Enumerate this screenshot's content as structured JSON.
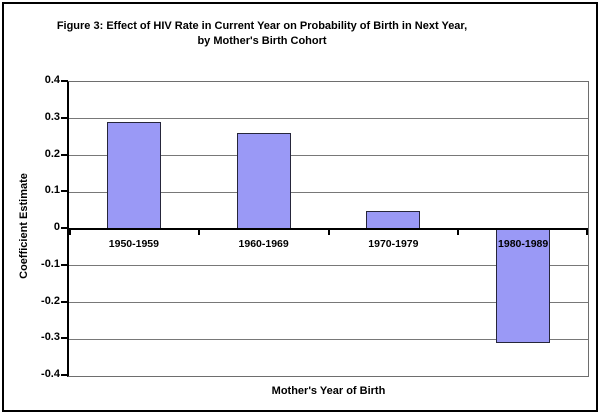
{
  "chart": {
    "title_line1": "Figure 3:  Effect of HIV Rate in Current Year on Probability of Birth in Next Year,",
    "title_line2": "by Mother's Birth Cohort",
    "xlabel": "Mother's Year of Birth",
    "ylabel": "Coefficient Estimate"
  },
  "chart_data": {
    "type": "bar",
    "title": "Figure 3: Effect of HIV Rate in Current Year on Probability of Birth in Next Year, by Mother's Birth Cohort",
    "categories": [
      "1950-1959",
      "1960-1969",
      "1970-1979",
      "1980-1989"
    ],
    "values": [
      0.29,
      0.26,
      0.05,
      -0.31
    ],
    "xlabel": "Mother's Year of Birth",
    "ylabel": "Coefficient Estimate",
    "ylim": [
      -0.4,
      0.4
    ],
    "yticks": [
      0.4,
      0.3,
      0.2,
      0.1,
      0,
      -0.1,
      -0.2,
      -0.3,
      -0.4
    ],
    "ytick_labels": [
      "0.4",
      "0.3",
      "0.2",
      "0.1",
      "0",
      "-0.1",
      "-0.2",
      "-0.3",
      "-0.4"
    ],
    "grid": true,
    "legend": "none",
    "bar_color": "#9a99f6",
    "bar_border_color": "#26263a",
    "gridline_color": "#787878",
    "axis_color": "#000000",
    "text_color": "#000000",
    "background_color": "#ffffff"
  }
}
